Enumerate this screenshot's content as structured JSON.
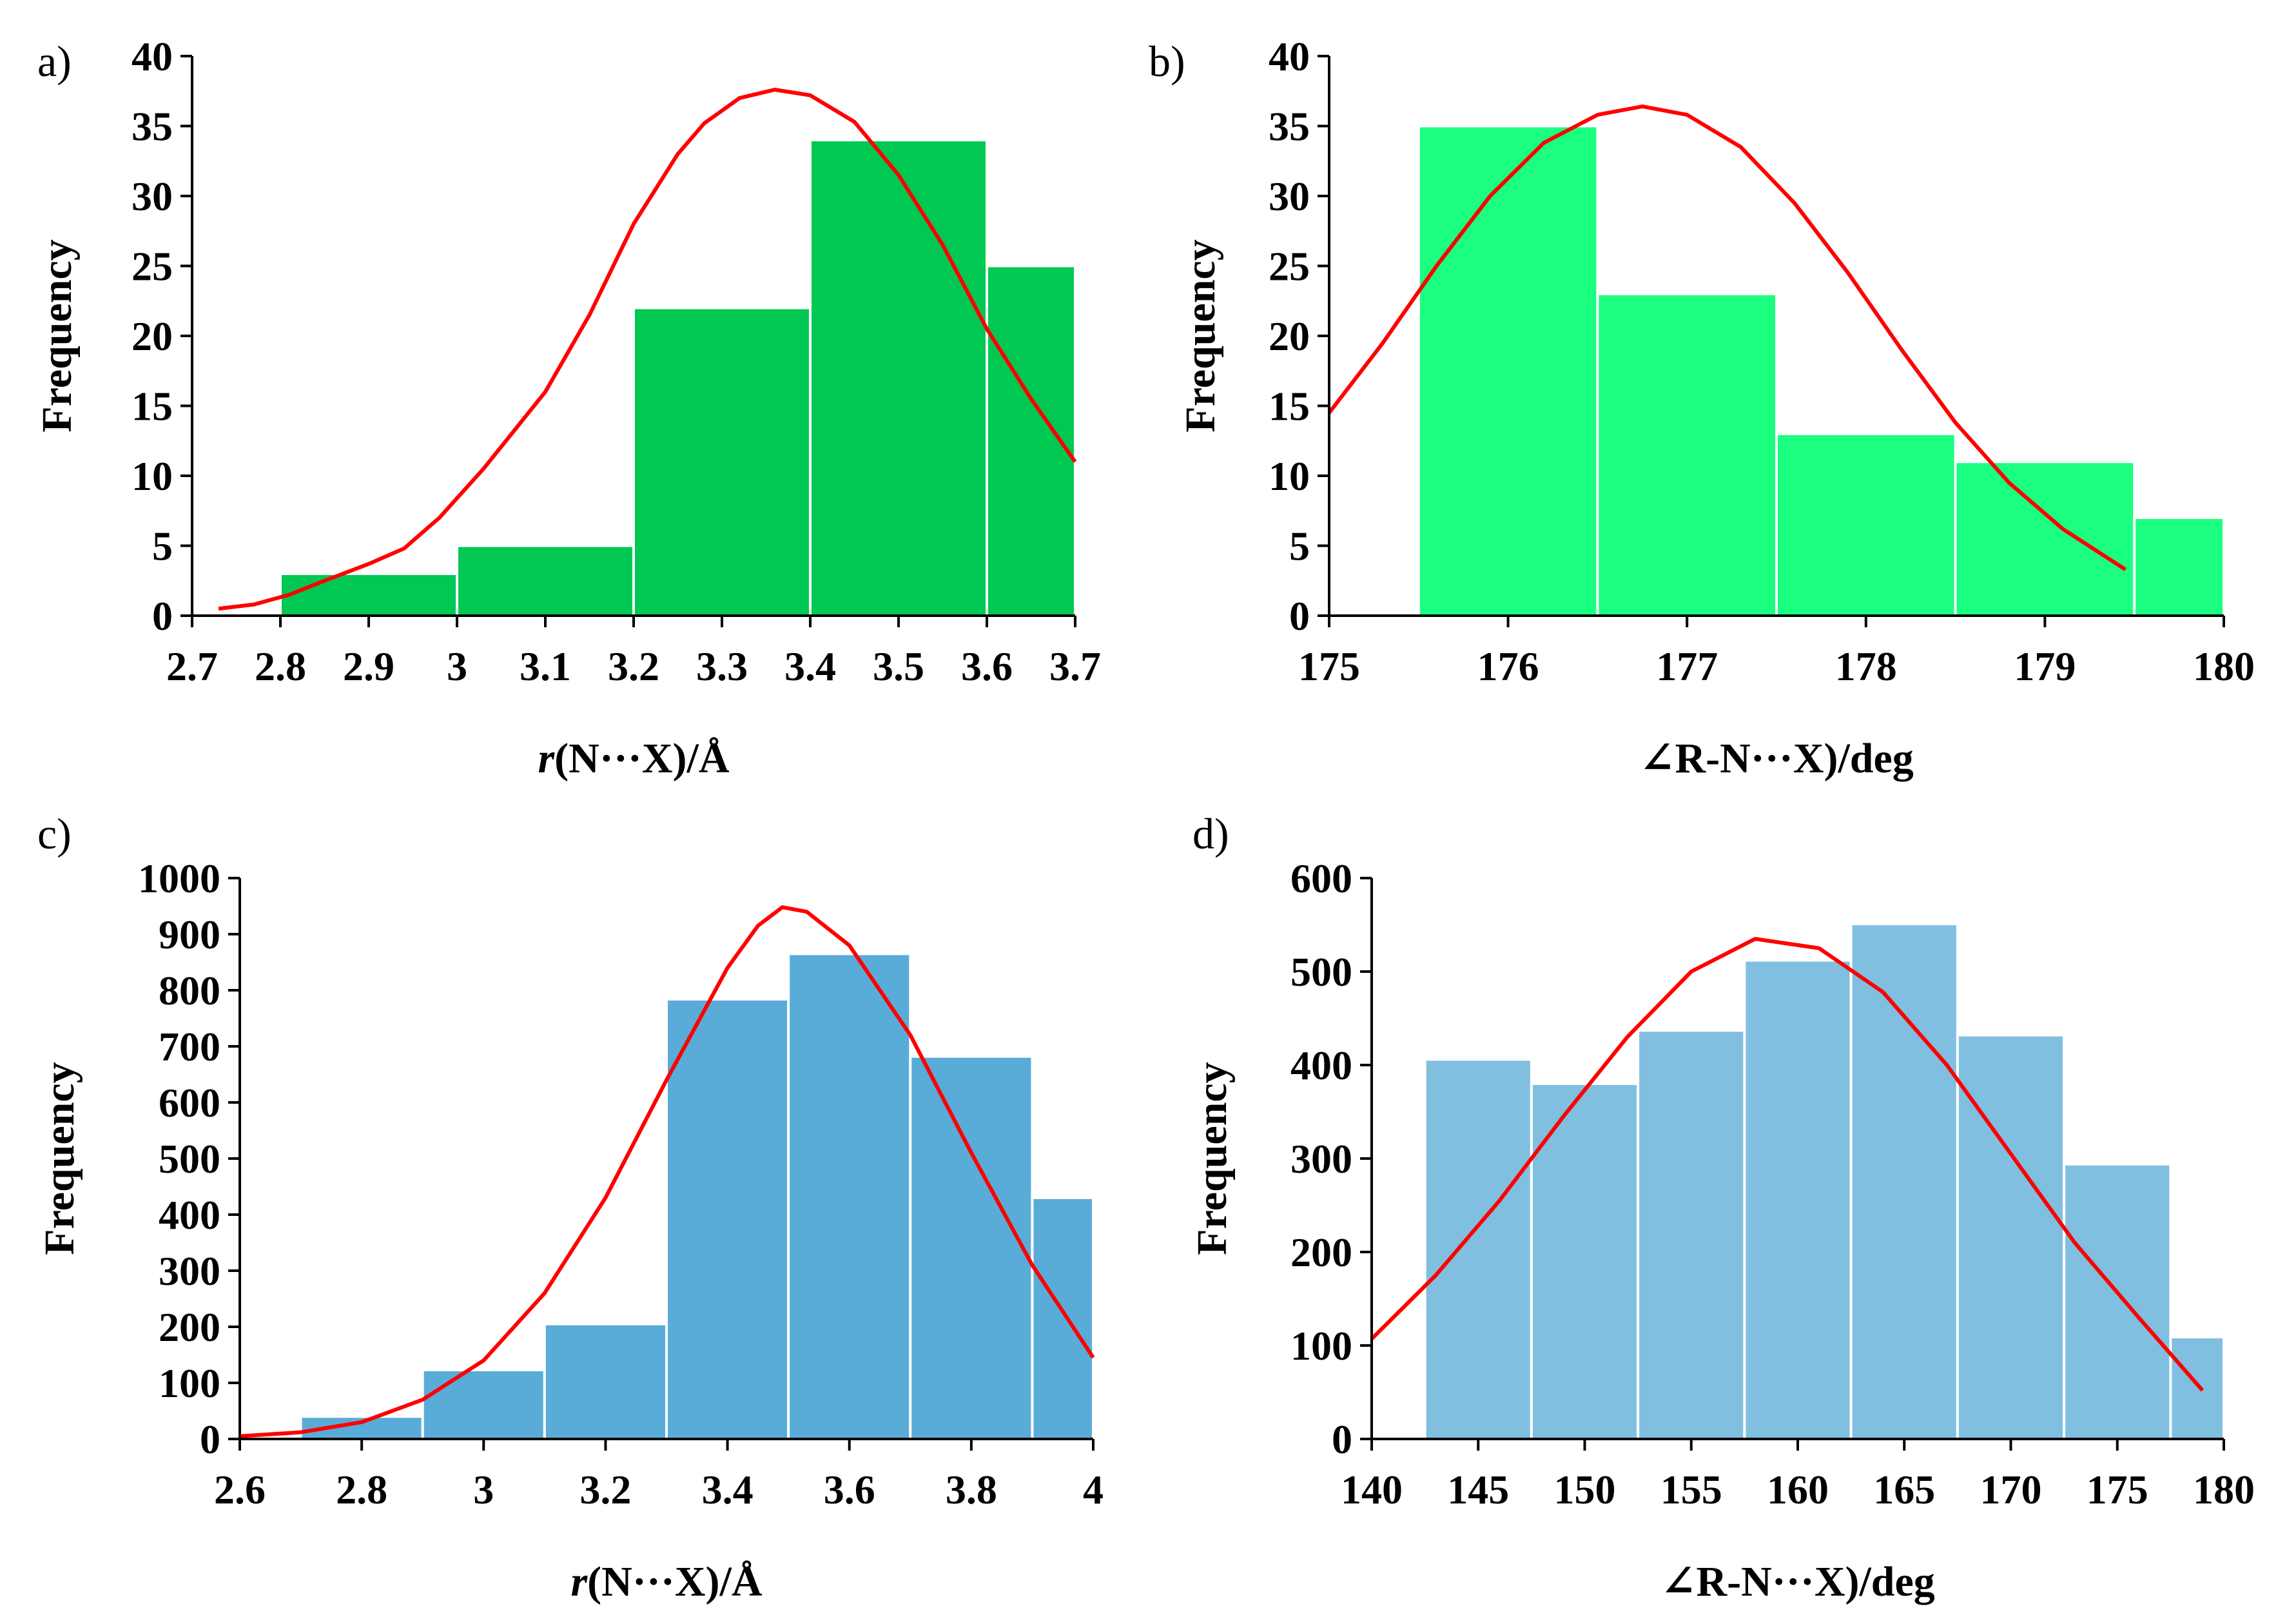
{
  "chart_data": [
    {
      "id": "a",
      "panel_label": "a)",
      "type": "bar",
      "bar_color": "#00c853",
      "curve_color": "#ff0000",
      "xlabel_italic": "r",
      "xlabel_rest": "(N···X)/Å",
      "ylabel": "Frequency",
      "xlim": [
        2.7,
        3.7
      ],
      "ylim": [
        0,
        40
      ],
      "xticks": [
        2.7,
        2.8,
        2.9,
        3.0,
        3.1,
        3.2,
        3.3,
        3.4,
        3.5,
        3.6,
        3.7
      ],
      "xtick_labels": [
        "2.7",
        "2.8",
        "2.9",
        "3",
        "3.1",
        "3.2",
        "3.3",
        "3.4",
        "3.5",
        "3.6",
        "3.7"
      ],
      "yticks": [
        0,
        5,
        10,
        15,
        20,
        25,
        30,
        35,
        40
      ],
      "bars": [
        {
          "x0": 2.8,
          "x1": 3.0,
          "value": 3
        },
        {
          "x0": 3.0,
          "x1": 3.2,
          "value": 5
        },
        {
          "x0": 3.2,
          "x1": 3.4,
          "value": 22
        },
        {
          "x0": 3.4,
          "x1": 3.6,
          "value": 34
        },
        {
          "x0": 3.6,
          "x1": 3.7,
          "value": 25
        }
      ],
      "curve": [
        [
          2.73,
          0.5
        ],
        [
          2.77,
          0.8
        ],
        [
          2.81,
          1.5
        ],
        [
          2.85,
          2.5
        ],
        [
          2.9,
          3.7
        ],
        [
          2.94,
          4.8
        ],
        [
          2.98,
          7
        ],
        [
          3.03,
          10.5
        ],
        [
          3.1,
          16
        ],
        [
          3.15,
          21.5
        ],
        [
          3.2,
          28
        ],
        [
          3.25,
          33
        ],
        [
          3.28,
          35.2
        ],
        [
          3.32,
          37
        ],
        [
          3.36,
          37.6
        ],
        [
          3.4,
          37.2
        ],
        [
          3.45,
          35.3
        ],
        [
          3.5,
          31.5
        ],
        [
          3.55,
          26.5
        ],
        [
          3.6,
          20.5
        ],
        [
          3.65,
          15.5
        ],
        [
          3.7,
          11
        ]
      ]
    },
    {
      "id": "b",
      "panel_label": "b)",
      "type": "bar",
      "bar_color": "#1aff80",
      "curve_color": "#ff0000",
      "xlabel_italic": "",
      "xlabel_rest": "∠R-N···X)/deg",
      "ylabel": "Frequency",
      "xlim": [
        175,
        180
      ],
      "ylim": [
        0,
        40
      ],
      "xticks": [
        175,
        176,
        177,
        178,
        179,
        180
      ],
      "xtick_labels": [
        "175",
        "176",
        "177",
        "178",
        "179",
        "180"
      ],
      "yticks": [
        0,
        5,
        10,
        15,
        20,
        25,
        30,
        35,
        40
      ],
      "bars": [
        {
          "x0": 175.5,
          "x1": 176.5,
          "value": 35
        },
        {
          "x0": 176.5,
          "x1": 177.5,
          "value": 23
        },
        {
          "x0": 177.5,
          "x1": 178.5,
          "value": 13
        },
        {
          "x0": 178.5,
          "x1": 179.5,
          "value": 11
        },
        {
          "x0": 179.5,
          "x1": 180.0,
          "value": 7
        }
      ],
      "curve": [
        [
          175.0,
          14.5
        ],
        [
          175.3,
          19.5
        ],
        [
          175.6,
          25
        ],
        [
          175.9,
          30
        ],
        [
          176.2,
          33.8
        ],
        [
          176.5,
          35.8
        ],
        [
          176.75,
          36.4
        ],
        [
          177.0,
          35.8
        ],
        [
          177.3,
          33.5
        ],
        [
          177.6,
          29.5
        ],
        [
          177.9,
          24.5
        ],
        [
          178.2,
          19
        ],
        [
          178.5,
          13.8
        ],
        [
          178.8,
          9.5
        ],
        [
          179.1,
          6.2
        ],
        [
          179.45,
          3.3
        ]
      ]
    },
    {
      "id": "c",
      "panel_label": "c)",
      "type": "bar",
      "bar_color": "#59acd8",
      "curve_color": "#ff0000",
      "xlabel_italic": "r",
      "xlabel_rest": "(N···X)/Å",
      "ylabel": "Frequency",
      "xlim": [
        2.6,
        4.0
      ],
      "ylim": [
        0,
        1000
      ],
      "xticks": [
        2.6,
        2.8,
        3.0,
        3.2,
        3.4,
        3.6,
        3.8,
        4.0
      ],
      "xtick_labels": [
        "2.6",
        "2.8",
        "3",
        "3.2",
        "3.4",
        "3.6",
        "3.8",
        "4"
      ],
      "yticks": [
        0,
        100,
        200,
        300,
        400,
        500,
        600,
        700,
        800,
        900,
        1000
      ],
      "bars": [
        {
          "x0": 2.7,
          "x1": 2.9,
          "value": 40
        },
        {
          "x0": 2.9,
          "x1": 3.1,
          "value": 123
        },
        {
          "x0": 3.1,
          "x1": 3.3,
          "value": 205
        },
        {
          "x0": 3.3,
          "x1": 3.5,
          "value": 784
        },
        {
          "x0": 3.5,
          "x1": 3.7,
          "value": 865
        },
        {
          "x0": 3.7,
          "x1": 3.9,
          "value": 682
        },
        {
          "x0": 3.9,
          "x1": 4.0,
          "value": 430
        }
      ],
      "curve": [
        [
          2.6,
          5
        ],
        [
          2.7,
          12
        ],
        [
          2.8,
          30
        ],
        [
          2.9,
          70
        ],
        [
          3.0,
          140
        ],
        [
          3.1,
          260
        ],
        [
          3.2,
          430
        ],
        [
          3.3,
          640
        ],
        [
          3.4,
          840
        ],
        [
          3.45,
          915
        ],
        [
          3.49,
          948
        ],
        [
          3.53,
          940
        ],
        [
          3.6,
          880
        ],
        [
          3.7,
          720
        ],
        [
          3.8,
          510
        ],
        [
          3.9,
          310
        ],
        [
          4.0,
          145
        ]
      ]
    },
    {
      "id": "d",
      "panel_label": "d)",
      "type": "bar",
      "bar_color": "#80bfe0",
      "curve_color": "#ff0000",
      "xlabel_italic": "",
      "xlabel_rest": "∠R-N···X)/deg",
      "ylabel": "Frequency",
      "xlim": [
        140,
        180
      ],
      "ylim": [
        0,
        600
      ],
      "xticks": [
        140,
        145,
        150,
        155,
        160,
        165,
        170,
        175,
        180
      ],
      "xtick_labels": [
        "140",
        "145",
        "150",
        "155",
        "160",
        "165",
        "170",
        "175",
        "180"
      ],
      "yticks": [
        0,
        100,
        200,
        300,
        400,
        500,
        600
      ],
      "bars": [
        {
          "x0": 142.5,
          "x1": 147.5,
          "value": 406
        },
        {
          "x0": 147.5,
          "x1": 152.5,
          "value": 380
        },
        {
          "x0": 152.5,
          "x1": 157.5,
          "value": 437
        },
        {
          "x0": 157.5,
          "x1": 162.5,
          "value": 512
        },
        {
          "x0": 162.5,
          "x1": 167.5,
          "value": 551
        },
        {
          "x0": 167.5,
          "x1": 172.5,
          "value": 432
        },
        {
          "x0": 172.5,
          "x1": 177.5,
          "value": 294
        },
        {
          "x0": 177.5,
          "x1": 180.0,
          "value": 109
        }
      ],
      "curve": [
        [
          140,
          107
        ],
        [
          143,
          175
        ],
        [
          146,
          255
        ],
        [
          149,
          345
        ],
        [
          152,
          430
        ],
        [
          155,
          500
        ],
        [
          158,
          535
        ],
        [
          161,
          525
        ],
        [
          164,
          478
        ],
        [
          167,
          400
        ],
        [
          170,
          305
        ],
        [
          173,
          210
        ],
        [
          176,
          130
        ],
        [
          179,
          52
        ]
      ]
    }
  ]
}
